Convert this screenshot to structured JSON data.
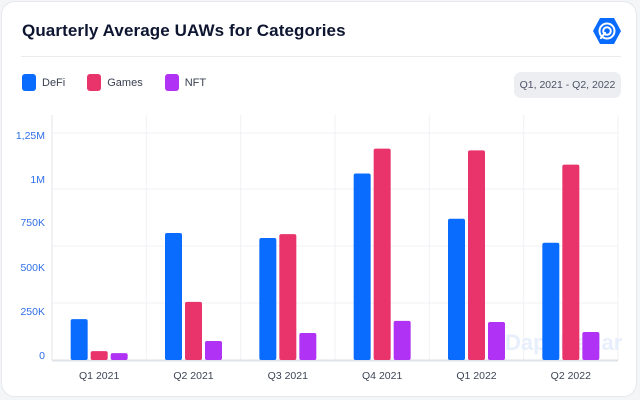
{
  "header": {
    "title": "Quarterly Average UAWs for Categories",
    "logo_icon": "dappradar-logo-icon",
    "date_range": "Q1, 2021 - Q2, 2022"
  },
  "watermark": "DappRadar",
  "colors": {
    "DeFi": "#0a6cff",
    "Games": "#e9336b",
    "NFT": "#b033f5"
  },
  "chart_data": {
    "type": "bar",
    "title": "Quarterly Average UAWs for Categories",
    "xlabel": "",
    "ylabel": "",
    "categories": [
      "Q1 2021",
      "Q2 2021",
      "Q3 2021",
      "Q4 2021",
      "Q1 2022",
      "Q2 2022"
    ],
    "series": [
      {
        "name": "DeFi",
        "color": "#0a6cff",
        "values": [
          230000,
          715000,
          687000,
          1050000,
          795000,
          660000
        ]
      },
      {
        "name": "Games",
        "color": "#e9336b",
        "values": [
          50000,
          327000,
          709000,
          1190000,
          1180000,
          1100000
        ]
      },
      {
        "name": "NFT",
        "color": "#b033f5",
        "values": [
          39000,
          107000,
          152000,
          220000,
          214000,
          158000
        ]
      }
    ],
    "yticks": [
      0,
      250000,
      500000,
      750000,
      1000000,
      1250000
    ],
    "ytick_labels": [
      "0",
      "250K",
      "500K",
      "750K",
      "1M",
      "1,25M"
    ],
    "ylim": [
      0,
      1250000
    ],
    "grid": true,
    "legend_position": "top-left"
  }
}
